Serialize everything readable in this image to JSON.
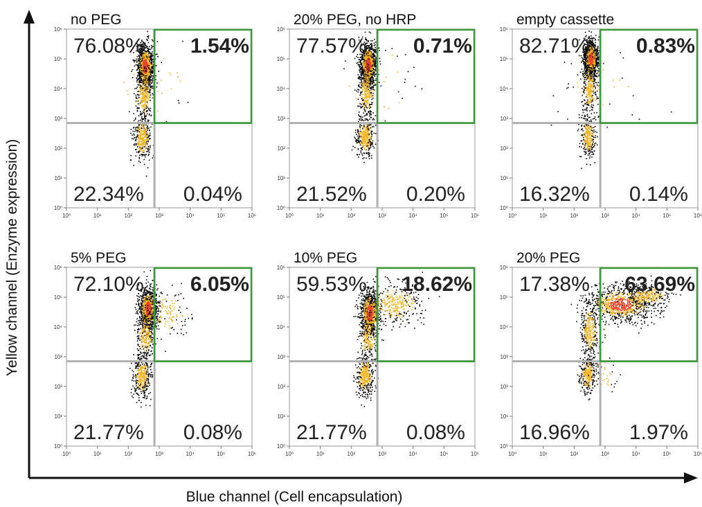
{
  "chart_data": {
    "type": "scatter",
    "xlabel": "Blue channel (Cell encapsulation)",
    "ylabel": "Yellow channel (Enzyme expression)",
    "scale": "log",
    "xlim": [
      1,
      1000000
    ],
    "ylim": [
      1,
      1000000
    ],
    "tick_labels": [
      "10⁰",
      "10¹",
      "10²",
      "10³",
      "10⁴",
      "10⁵",
      "10⁶"
    ],
    "gate_x": 700,
    "gate_y": 700,
    "colors": {
      "low": "#000000",
      "mid": "#f5b21b",
      "high": "#e8452a",
      "gate_axes": "#b0b0b0",
      "highlight": "#3a9a3a"
    },
    "panels": [
      {
        "title": "no PEG",
        "quadrants": {
          "upper_left": "76.08%",
          "upper_right": "1.54%",
          "lower_left": "22.34%",
          "lower_right": "0.04%"
        },
        "populations": [
          {
            "cx": 2.55,
            "cy": 4.75,
            "sx": 0.13,
            "sy": 0.35,
            "weight": 0.62
          },
          {
            "cx": 2.5,
            "cy": 3.8,
            "sx": 0.13,
            "sy": 0.45,
            "weight": 0.16
          },
          {
            "cx": 2.45,
            "cy": 2.35,
            "sx": 0.14,
            "sy": 0.35,
            "weight": 0.2
          },
          {
            "cx": 2.8,
            "cy": 4.2,
            "sx": 0.7,
            "sy": 0.8,
            "weight": 0.02
          }
        ]
      },
      {
        "title": "20% PEG, no HRP",
        "quadrants": {
          "upper_left": "77.57%",
          "upper_right": "0.71%",
          "lower_left": "21.52%",
          "lower_right": "0.20%"
        },
        "populations": [
          {
            "cx": 2.55,
            "cy": 4.8,
            "sx": 0.13,
            "sy": 0.35,
            "weight": 0.62
          },
          {
            "cx": 2.5,
            "cy": 3.9,
            "sx": 0.13,
            "sy": 0.45,
            "weight": 0.16
          },
          {
            "cx": 2.45,
            "cy": 2.4,
            "sx": 0.14,
            "sy": 0.35,
            "weight": 0.2
          },
          {
            "cx": 2.8,
            "cy": 4.2,
            "sx": 0.7,
            "sy": 0.8,
            "weight": 0.02
          }
        ]
      },
      {
        "title": "empty cassette",
        "quadrants": {
          "upper_left": "82.71%",
          "upper_right": "0.83%",
          "lower_left": "16.32%",
          "lower_right": "0.14%"
        },
        "populations": [
          {
            "cx": 2.55,
            "cy": 5.0,
            "sx": 0.11,
            "sy": 0.3,
            "weight": 0.66
          },
          {
            "cx": 2.5,
            "cy": 4.0,
            "sx": 0.12,
            "sy": 0.45,
            "weight": 0.16
          },
          {
            "cx": 2.45,
            "cy": 2.4,
            "sx": 0.12,
            "sy": 0.35,
            "weight": 0.16
          },
          {
            "cx": 2.8,
            "cy": 4.2,
            "sx": 0.7,
            "sy": 0.8,
            "weight": 0.02
          }
        ]
      },
      {
        "title": "5% PEG",
        "quadrants": {
          "upper_left": "72.10%",
          "upper_right": "6.05%",
          "lower_left": "21.77%",
          "lower_right": "0.08%"
        },
        "populations": [
          {
            "cx": 2.65,
            "cy": 4.6,
            "sx": 0.15,
            "sy": 0.35,
            "weight": 0.58
          },
          {
            "cx": 2.55,
            "cy": 3.7,
            "sx": 0.14,
            "sy": 0.4,
            "weight": 0.14
          },
          {
            "cx": 2.45,
            "cy": 2.35,
            "sx": 0.14,
            "sy": 0.35,
            "weight": 0.21
          },
          {
            "cx": 3.3,
            "cy": 4.5,
            "sx": 0.35,
            "sy": 0.4,
            "weight": 0.07
          }
        ]
      },
      {
        "title": "10% PEG",
        "quadrants": {
          "upper_left": "59.53%",
          "upper_right": "18.62%",
          "lower_left": "21.77%",
          "lower_right": "0.08%"
        },
        "populations": [
          {
            "cx": 2.6,
            "cy": 4.45,
            "sx": 0.15,
            "sy": 0.4,
            "weight": 0.5
          },
          {
            "cx": 2.55,
            "cy": 3.6,
            "sx": 0.14,
            "sy": 0.4,
            "weight": 0.1
          },
          {
            "cx": 2.45,
            "cy": 2.35,
            "sx": 0.14,
            "sy": 0.35,
            "weight": 0.21
          },
          {
            "cx": 3.4,
            "cy": 4.75,
            "sx": 0.45,
            "sy": 0.35,
            "weight": 0.19
          }
        ]
      },
      {
        "title": "20% PEG",
        "quadrants": {
          "upper_left": "17.38%",
          "upper_right": "63.69%",
          "lower_left": "16.96%",
          "lower_right": "1.97%"
        },
        "populations": [
          {
            "cx": 3.5,
            "cy": 4.75,
            "sx": 0.55,
            "sy": 0.3,
            "weight": 0.5
          },
          {
            "cx": 4.4,
            "cy": 5.05,
            "sx": 0.35,
            "sy": 0.18,
            "weight": 0.14
          },
          {
            "cx": 2.5,
            "cy": 3.9,
            "sx": 0.14,
            "sy": 0.45,
            "weight": 0.17
          },
          {
            "cx": 2.45,
            "cy": 2.4,
            "sx": 0.12,
            "sy": 0.3,
            "weight": 0.17
          },
          {
            "cx": 3.0,
            "cy": 2.4,
            "sx": 0.25,
            "sy": 0.3,
            "weight": 0.02
          }
        ]
      }
    ]
  }
}
